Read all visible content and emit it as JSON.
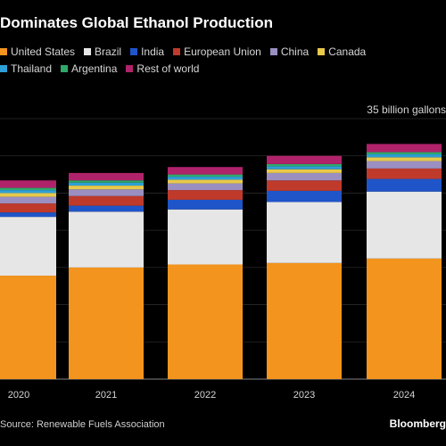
{
  "title": "Dominates Global Ethanol Production",
  "legend": [
    {
      "label": "United States",
      "color": "#f3941e"
    },
    {
      "label": "Brazil",
      "color": "#e6e6e6"
    },
    {
      "label": "India",
      "color": "#1f55c8"
    },
    {
      "label": "European Union",
      "color": "#bf3a2b"
    },
    {
      "label": "China",
      "color": "#9a8fc0"
    },
    {
      "label": "Canada",
      "color": "#e8c94a"
    },
    {
      "label": "Thailand",
      "color": "#2e9fd6"
    },
    {
      "label": "Argentina",
      "color": "#2fa86a"
    },
    {
      "label": "Rest of world",
      "color": "#b0236b"
    }
  ],
  "unit_label": "35 billion gallons",
  "source": "Source: Renewable Fuels Association",
  "brand": "Bloomberg",
  "chart_data": {
    "type": "bar",
    "stacked": true,
    "categories": [
      "2020",
      "2021",
      "2022",
      "2023",
      "2024"
    ],
    "ylim": [
      0,
      35
    ],
    "grid": true,
    "series": [
      {
        "name": "United States",
        "values": [
          13.9,
          15.0,
          15.4,
          15.6,
          16.2
        ]
      },
      {
        "name": "Brazil",
        "values": [
          7.9,
          7.5,
          7.4,
          8.2,
          9.0
        ]
      },
      {
        "name": "India",
        "values": [
          0.6,
          0.8,
          1.3,
          1.5,
          1.7
        ]
      },
      {
        "name": "European Union",
        "values": [
          1.2,
          1.3,
          1.3,
          1.4,
          1.4
        ]
      },
      {
        "name": "China",
        "values": [
          0.9,
          0.9,
          0.9,
          1.0,
          1.0
        ]
      },
      {
        "name": "Canada",
        "values": [
          0.5,
          0.5,
          0.5,
          0.5,
          0.5
        ]
      },
      {
        "name": "Thailand",
        "values": [
          0.4,
          0.4,
          0.4,
          0.4,
          0.4
        ]
      },
      {
        "name": "Argentina",
        "values": [
          0.3,
          0.3,
          0.3,
          0.3,
          0.3
        ]
      },
      {
        "name": "Rest of world",
        "values": [
          1.0,
          1.0,
          1.0,
          1.1,
          1.1
        ]
      }
    ]
  }
}
